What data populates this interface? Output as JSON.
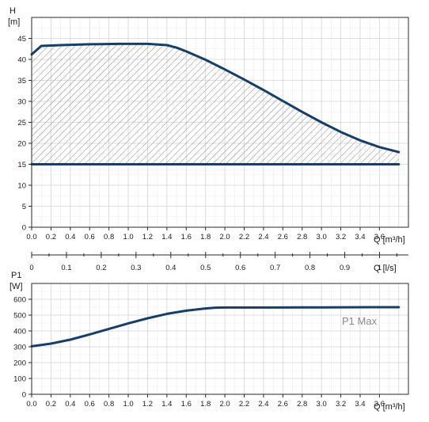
{
  "colors": {
    "curve": "#173e66",
    "hatch": "#8c8c8c",
    "annotation": "#8a8a8a"
  },
  "chart_data": [
    {
      "type": "area",
      "ylabel_top": "H",
      "ylabel_unit": "[m]",
      "xlabel": "Q [m³/h]",
      "xlim": [
        0,
        3.9
      ],
      "ylim": [
        0,
        50
      ],
      "x_ticks": [
        "0.0",
        "0.2",
        "0.4",
        "0.6",
        "0.8",
        "1.0",
        "1.2",
        "1.4",
        "1.6",
        "1.8",
        "2.0",
        "2.2",
        "2.4",
        "2.6",
        "2.8",
        "3.0",
        "3.2",
        "3.4",
        "3.6"
      ],
      "y_ticks": [
        "0",
        "5",
        "10",
        "15",
        "20",
        "25",
        "30",
        "35",
        "40",
        "45"
      ],
      "grid": true,
      "fill": "hatched region between max curve and min curve",
      "series": [
        {
          "x": [
            0.0,
            0.03,
            0.1,
            0.3,
            0.6,
            0.9,
            1.2,
            1.4,
            1.5,
            1.6,
            1.8,
            2.0,
            2.2,
            2.4,
            2.6,
            2.8,
            3.0,
            3.2,
            3.4,
            3.6,
            3.8
          ],
          "y": [
            41.2,
            41.8,
            43.2,
            43.4,
            43.6,
            43.7,
            43.7,
            43.4,
            42.8,
            41.9,
            39.9,
            37.6,
            35.2,
            32.7,
            30.1,
            27.5,
            25.0,
            22.7,
            20.7,
            19.1,
            17.9
          ]
        },
        {
          "x": [
            0.0,
            3.8
          ],
          "y": [
            15.0,
            15.0
          ]
        }
      ]
    },
    {
      "type": "axis",
      "xlabel": "Q [l/s]",
      "xlim": [
        0,
        1.083
      ],
      "x_ticks": [
        "0",
        "0.1",
        "0.2",
        "0.3",
        "0.4",
        "0.5",
        "0.6",
        "0.7",
        "0.8",
        "0.9",
        "1"
      ]
    },
    {
      "type": "line",
      "ylabel_top": "P1",
      "ylabel_unit": "[W]",
      "xlabel": "Q [m³/h]",
      "xlim": [
        0,
        3.9
      ],
      "ylim": [
        0,
        700
      ],
      "x_ticks": [
        "0.0",
        "0.2",
        "0.4",
        "0.6",
        "0.8",
        "1.0",
        "1.2",
        "1.4",
        "1.6",
        "1.8",
        "2.0",
        "2.2",
        "2.4",
        "2.6",
        "2.8",
        "3.0",
        "3.2",
        "3.4",
        "3.6"
      ],
      "y_ticks": [
        "0",
        "100",
        "200",
        "300",
        "400",
        "500",
        "600"
      ],
      "grid": true,
      "annotation": "P1 Max",
      "series": [
        {
          "name": "P1 Max",
          "x": [
            0.0,
            0.2,
            0.4,
            0.6,
            0.8,
            1.0,
            1.2,
            1.4,
            1.6,
            1.8,
            1.9,
            2.0,
            2.5,
            3.0,
            3.5,
            3.8
          ],
          "y": [
            303,
            320,
            345,
            378,
            413,
            448,
            480,
            508,
            528,
            542,
            547,
            548,
            548,
            549,
            550,
            550
          ]
        }
      ]
    }
  ]
}
